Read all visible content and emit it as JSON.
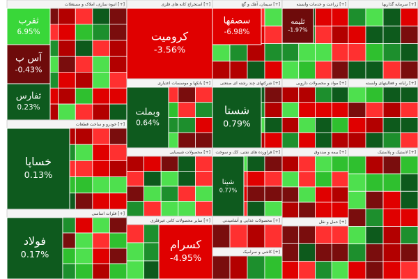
{
  "sectors": [
    {
      "title": "[+] انبوه سازی، املاک و مستغلات",
      "tiles": [
        {
          "label": "ثفرب",
          "change": "6.95%"
        },
        {
          "label": "آس پ",
          "change": "-0.43%"
        },
        {
          "label": "ثفارس",
          "change": "0.23%"
        }
      ]
    },
    {
      "title": "[+] خودرو و ساخت قطعات",
      "tiles": [
        {
          "label": "خساپا",
          "change": "0.13%"
        }
      ]
    },
    {
      "title": "[+] فلزات اساسی",
      "tiles": [
        {
          "label": "فولاد",
          "change": "0.17%"
        }
      ]
    },
    {
      "title": "[+] استخراج کانه های فلزی",
      "tiles": [
        {
          "label": "کرومیت",
          "change": "-3.56%"
        }
      ]
    },
    {
      "title": "[+] بانکها و موسسات اعتباری",
      "tiles": [
        {
          "label": "وبملت",
          "change": "0.64%"
        }
      ]
    },
    {
      "title": "[+] محصولات شیمیایی",
      "tiles": []
    },
    {
      "title": "[+] سایر محصولات کانی غیرفلزی",
      "tiles": [
        {
          "label": "کسرام",
          "change": "-4.95%"
        }
      ]
    },
    {
      "title": "[+] سیمان، آهک و گچ",
      "tiles": [
        {
          "label": "سصفها",
          "change": "-6.98%"
        }
      ]
    },
    {
      "title": "[+] شرکتهای چند رشته ای صنعتی",
      "tiles": [
        {
          "label": "شستا",
          "change": "0.79%"
        }
      ]
    },
    {
      "title": "[+] فراورده های نفتی، کک و سوخت",
      "tiles": [
        {
          "label": "شینا",
          "change": "0.77%"
        }
      ]
    },
    {
      "title": "[+] محصولات غذایی و آشامیدنی",
      "tiles": []
    },
    {
      "title": "[+] کاشی و سرامیک",
      "tiles": []
    },
    {
      "title": "[+] زراعت و خدمات وابسته",
      "tiles": [
        {
          "label": "ثلیمه",
          "change": "-1.97%"
        }
      ]
    },
    {
      "title": "[+] مواد و محصولات دارویی",
      "tiles": []
    },
    {
      "title": "[+] سرمایه گذاریها",
      "tiles": []
    },
    {
      "title": "[+] بیمه و صندوق",
      "tiles": []
    },
    {
      "title": "[+] رایانه و فعالیتهای وابسته",
      "tiles": []
    },
    {
      "title": "[+] حمل و نقل",
      "tiles": []
    },
    {
      "title": "[+] لاستیک و پلاستیک",
      "tiles": []
    }
  ]
}
